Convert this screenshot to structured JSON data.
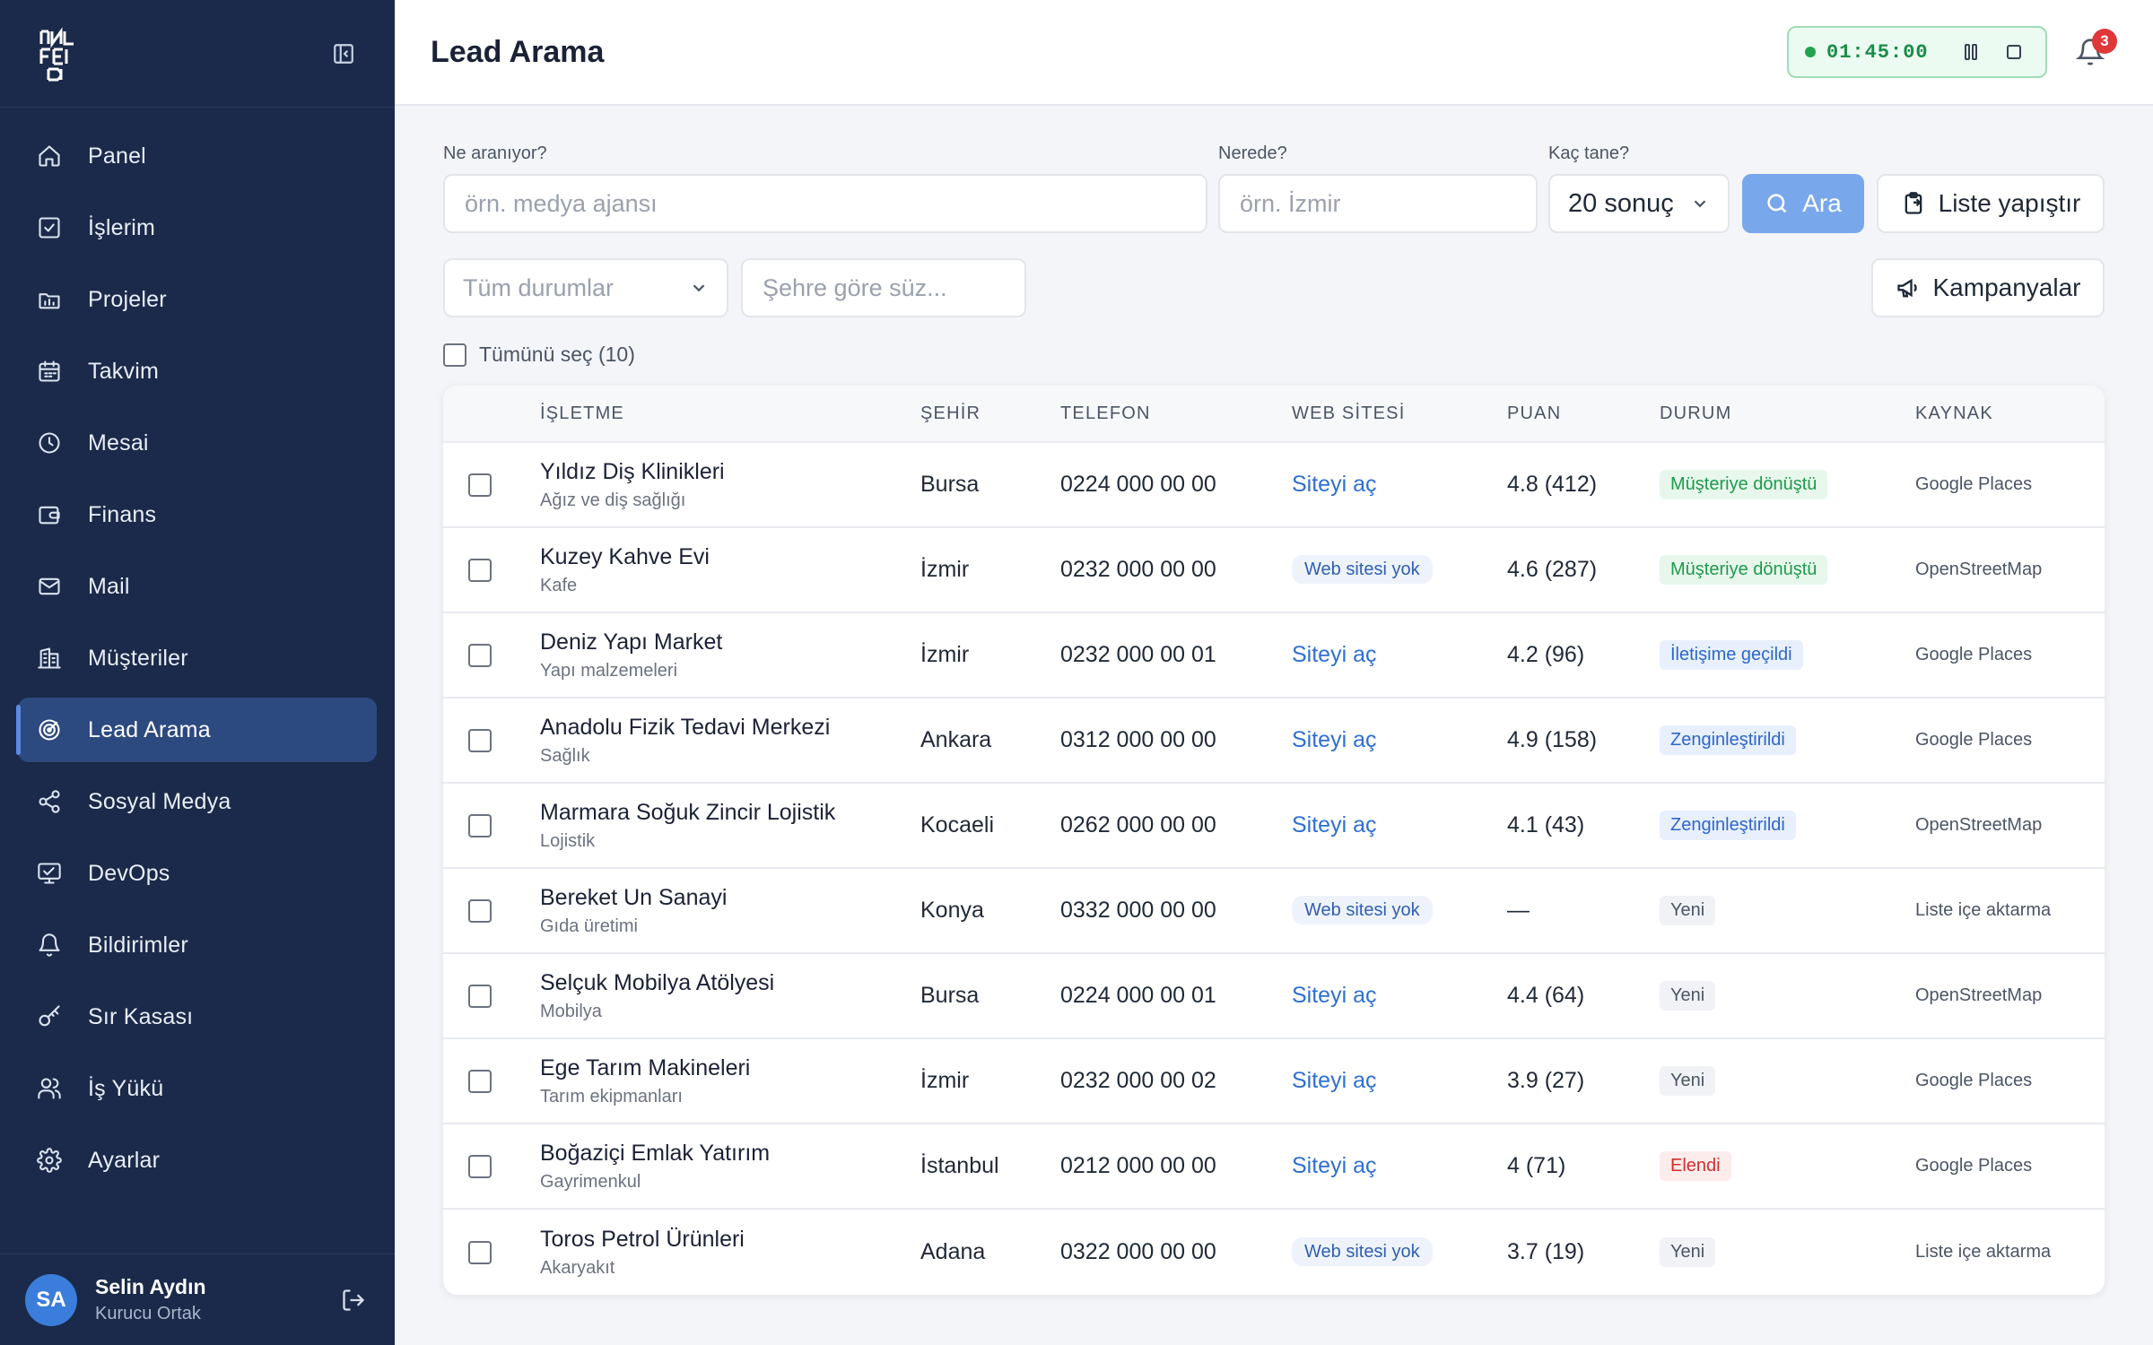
{
  "sidebar": {
    "items": [
      {
        "label": "Panel",
        "icon": "home-icon"
      },
      {
        "label": "İşlerim",
        "icon": "checkbox-icon"
      },
      {
        "label": "Projeler",
        "icon": "folder-icon"
      },
      {
        "label": "Takvim",
        "icon": "calendar-icon"
      },
      {
        "label": "Mesai",
        "icon": "clock-icon"
      },
      {
        "label": "Finans",
        "icon": "wallet-icon"
      },
      {
        "label": "Mail",
        "icon": "mail-icon"
      },
      {
        "label": "Müşteriler",
        "icon": "building-icon"
      },
      {
        "label": "Lead Arama",
        "icon": "radar-icon"
      },
      {
        "label": "Sosyal Medya",
        "icon": "share-icon"
      },
      {
        "label": "DevOps",
        "icon": "monitor-icon"
      },
      {
        "label": "Bildirimler",
        "icon": "bell-icon"
      },
      {
        "label": "Sır Kasası",
        "icon": "key-icon"
      },
      {
        "label": "İş Yükü",
        "icon": "users-icon"
      },
      {
        "label": "Ayarlar",
        "icon": "gear-icon"
      }
    ],
    "active_index": 8,
    "user": {
      "initials": "SA",
      "name": "Selin Aydın",
      "role": "Kurucu Ortak"
    }
  },
  "header": {
    "title": "Lead Arama",
    "timer": "01:45:00",
    "notification_count": "3"
  },
  "search": {
    "what_label": "Ne aranıyor?",
    "what_placeholder": "örn. medya ajansı",
    "where_label": "Nerede?",
    "where_placeholder": "örn. İzmir",
    "count_label": "Kaç tane?",
    "count_value": "20 sonuç",
    "search_button": "Ara",
    "paste_button": "Liste yapıştır"
  },
  "filters": {
    "status_value": "Tüm durumlar",
    "city_placeholder": "Şehre göre süz...",
    "campaigns_button": "Kampanyalar",
    "select_all": "Tümünü seç (10)"
  },
  "table": {
    "columns": [
      "İŞLETME",
      "ŞEHİR",
      "TELEFON",
      "WEB SİTESİ",
      "PUAN",
      "DURUM",
      "KAYNAK"
    ],
    "rows": [
      {
        "name": "Yıldız Diş Klinikleri",
        "category": "Ağız ve diş sağlığı",
        "city": "Bursa",
        "phone": "0224 000 00 00",
        "web": "Siteyi aç",
        "web_type": "link",
        "rating": "4.8 (412)",
        "status": "Müşteriye dönüştü",
        "status_type": "green",
        "source": "Google Places"
      },
      {
        "name": "Kuzey Kahve Evi",
        "category": "Kafe",
        "city": "İzmir",
        "phone": "0232 000 00 00",
        "web": "Web sitesi yok",
        "web_type": "none",
        "rating": "4.6 (287)",
        "status": "Müşteriye dönüştü",
        "status_type": "green",
        "source": "OpenStreetMap"
      },
      {
        "name": "Deniz Yapı Market",
        "category": "Yapı malzemeleri",
        "city": "İzmir",
        "phone": "0232 000 00 01",
        "web": "Siteyi aç",
        "web_type": "link",
        "rating": "4.2 (96)",
        "status": "İletişime geçildi",
        "status_type": "blue",
        "source": "Google Places"
      },
      {
        "name": "Anadolu Fizik Tedavi Merkezi",
        "category": "Sağlık",
        "city": "Ankara",
        "phone": "0312 000 00 00",
        "web": "Siteyi aç",
        "web_type": "link",
        "rating": "4.9 (158)",
        "status": "Zenginleştirildi",
        "status_type": "blue",
        "source": "Google Places"
      },
      {
        "name": "Marmara Soğuk Zincir Lojistik",
        "category": "Lojistik",
        "city": "Kocaeli",
        "phone": "0262 000 00 00",
        "web": "Siteyi aç",
        "web_type": "link",
        "rating": "4.1 (43)",
        "status": "Zenginleştirildi",
        "status_type": "blue",
        "source": "OpenStreetMap"
      },
      {
        "name": "Bereket Un Sanayi",
        "category": "Gıda üretimi",
        "city": "Konya",
        "phone": "0332 000 00 00",
        "web": "Web sitesi yok",
        "web_type": "none",
        "rating": "—",
        "status": "Yeni",
        "status_type": "gray",
        "source": "Liste içe aktarma"
      },
      {
        "name": "Selçuk Mobilya Atölyesi",
        "category": "Mobilya",
        "city": "Bursa",
        "phone": "0224 000 00 01",
        "web": "Siteyi aç",
        "web_type": "link",
        "rating": "4.4 (64)",
        "status": "Yeni",
        "status_type": "gray",
        "source": "OpenStreetMap"
      },
      {
        "name": "Ege Tarım Makineleri",
        "category": "Tarım ekipmanları",
        "city": "İzmir",
        "phone": "0232 000 00 02",
        "web": "Siteyi aç",
        "web_type": "link",
        "rating": "3.9 (27)",
        "status": "Yeni",
        "status_type": "gray",
        "source": "Google Places"
      },
      {
        "name": "Boğaziçi Emlak Yatırım",
        "category": "Gayrimenkul",
        "city": "İstanbul",
        "phone": "0212 000 00 00",
        "web": "Siteyi aç",
        "web_type": "link",
        "rating": "4 (71)",
        "status": "Elendi",
        "status_type": "red",
        "source": "Google Places"
      },
      {
        "name": "Toros Petrol Ürünleri",
        "category": "Akaryakıt",
        "city": "Adana",
        "phone": "0322 000 00 00",
        "web": "Web sitesi yok",
        "web_type": "none",
        "rating": "3.7 (19)",
        "status": "Yeni",
        "status_type": "gray",
        "source": "Liste içe aktarma"
      }
    ]
  },
  "colors": {
    "sidebar_bg": "#1b2a4a",
    "active_item": "#2c4a7f",
    "primary_button": "#79a7ec",
    "link": "#2f6fd0",
    "status_green": "#1f9a4c",
    "status_red": "#d52c2c"
  }
}
